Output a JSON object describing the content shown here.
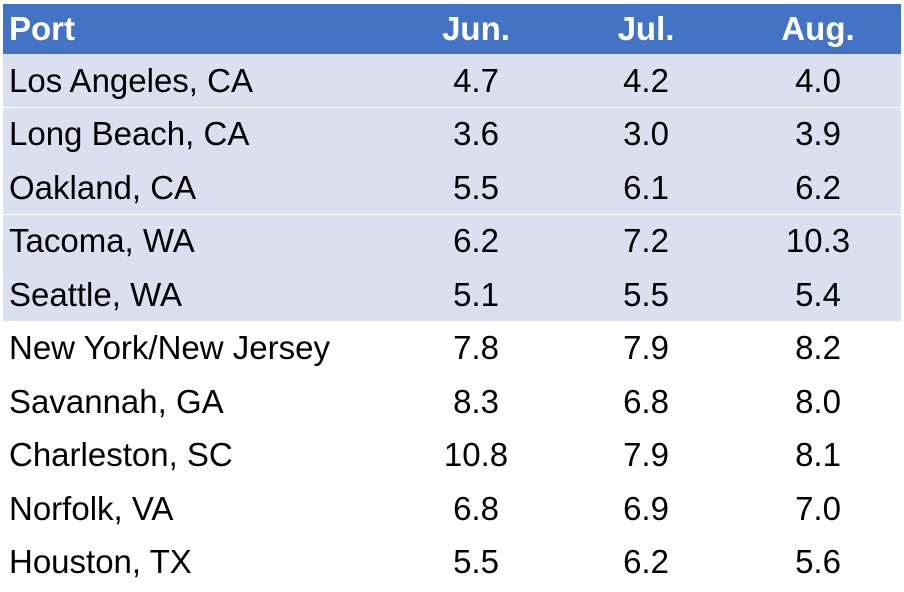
{
  "chart_data": {
    "type": "table",
    "columns": [
      "Port",
      "Jun.",
      "Jul.",
      "Aug."
    ],
    "header_color": "#4472c4",
    "shaded_row_color": "#dae0ef",
    "shaded_rows": 5,
    "rows": [
      {
        "port": "Los Angeles, CA",
        "jun": "4.7",
        "jul": "4.2",
        "aug": "4.0"
      },
      {
        "port": "Long Beach, CA",
        "jun": "3.6",
        "jul": "3.0",
        "aug": "3.9"
      },
      {
        "port": "Oakland, CA",
        "jun": "5.5",
        "jul": "6.1",
        "aug": "6.2"
      },
      {
        "port": "Tacoma, WA",
        "jun": "6.2",
        "jul": "7.2",
        "aug": "10.3"
      },
      {
        "port": "Seattle, WA",
        "jun": "5.1",
        "jul": "5.5",
        "aug": "5.4"
      },
      {
        "port": "New York/New Jersey",
        "jun": "7.8",
        "jul": "7.9",
        "aug": "8.2"
      },
      {
        "port": "Savannah, GA",
        "jun": "8.3",
        "jul": "6.8",
        "aug": "8.0"
      },
      {
        "port": "Charleston, SC",
        "jun": "10.8",
        "jul": "7.9",
        "aug": "8.1"
      },
      {
        "port": "Norfolk, VA",
        "jun": "6.8",
        "jul": "6.9",
        "aug": "7.0"
      },
      {
        "port": "Houston, TX",
        "jun": "5.5",
        "jul": "6.2",
        "aug": "5.6"
      }
    ]
  }
}
